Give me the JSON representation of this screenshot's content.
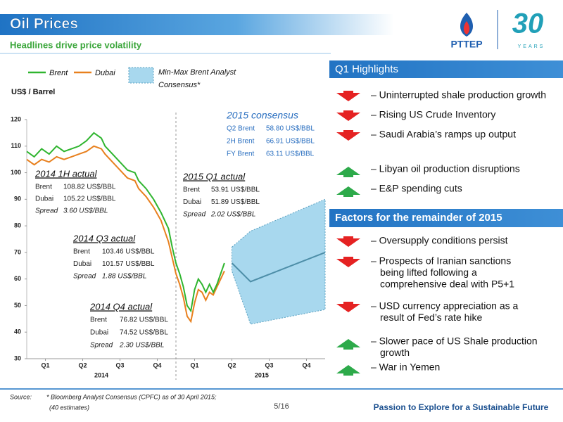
{
  "header": {
    "title": "Oil Prices",
    "subtitle": "Headlines drive price volatility",
    "logo": "PTTEP",
    "anniversary": "30",
    "anniversary_word": "YEARS"
  },
  "chart_data": {
    "type": "line",
    "ylabel": "US$ / Barrel",
    "xlim": [
      0,
      8
    ],
    "ylim": [
      30,
      120
    ],
    "yticks": [
      30,
      40,
      50,
      60,
      70,
      80,
      90,
      100,
      110,
      120
    ],
    "xticks": [
      {
        "value": 0.5,
        "label": "Q1"
      },
      {
        "value": 1.5,
        "label": "Q2"
      },
      {
        "value": 2.5,
        "label": "Q3"
      },
      {
        "value": 3.5,
        "label": "Q4"
      },
      {
        "value": 4.5,
        "label": "Q1"
      },
      {
        "value": 5.5,
        "label": "Q2"
      },
      {
        "value": 6.5,
        "label": "Q3"
      },
      {
        "value": 7.5,
        "label": "Q4"
      }
    ],
    "years": [
      {
        "value": 2,
        "label": "2014"
      },
      {
        "value": 6.3,
        "label": "2015"
      }
    ],
    "x": [
      0,
      0.2,
      0.4,
      0.6,
      0.8,
      1.0,
      1.2,
      1.4,
      1.6,
      1.8,
      2.0,
      2.1,
      2.3,
      2.5,
      2.7,
      2.9,
      3.0,
      3.2,
      3.4,
      3.6,
      3.7,
      3.8,
      3.9,
      4.0,
      4.1,
      4.2,
      4.3,
      4.4,
      4.5,
      4.6,
      4.7,
      4.8,
      4.9,
      5.0,
      5.1,
      5.2,
      5.3
    ],
    "series": [
      {
        "name": "Brent",
        "color": "#2fb52f",
        "values": [
          108,
          106,
          109,
          107,
          110,
          108,
          109,
          110,
          112,
          115,
          113,
          110,
          107,
          104,
          101,
          100,
          97,
          94,
          90,
          85,
          82,
          79,
          72,
          66,
          62,
          57,
          50,
          48,
          56,
          60,
          58,
          55,
          58,
          55,
          58,
          62,
          66
        ]
      },
      {
        "name": "Dubai",
        "color": "#e8801e",
        "values": [
          105,
          103,
          105,
          104,
          106,
          105,
          106,
          107,
          108,
          110,
          109,
          107,
          104,
          101,
          98,
          97,
          94,
          91,
          87,
          82,
          78,
          74,
          68,
          62,
          58,
          53,
          46,
          44,
          51,
          56,
          55,
          52,
          55,
          54,
          57,
          60,
          63
        ]
      }
    ],
    "consensus": {
      "name": "Min-Max Brent Analyst Consensus*",
      "color": "#a8d8ee",
      "line_color": "#4d8ea8",
      "x": [
        5.5,
        6.0,
        8.0
      ],
      "min": [
        63,
        43,
        48.5
      ],
      "max": [
        72,
        78,
        90
      ],
      "median": [
        66,
        59,
        70
      ]
    },
    "annotations": [
      {
        "title": "2014 1H actual",
        "rows": [
          [
            "Brent",
            "108.82 US$/BBL"
          ],
          [
            "Dubai",
            "105.22 US$/BBL"
          ],
          [
            "Spread",
            "3.60 US$/BBL"
          ]
        ]
      },
      {
        "title": "2015 Q1 actual",
        "rows": [
          [
            "Brent",
            "53.91 US$/BBL"
          ],
          [
            "Dubai",
            "51.89 US$/BBL"
          ],
          [
            "Spread",
            "2.02 US$/BBL"
          ]
        ]
      },
      {
        "title": "2014 Q3 actual",
        "rows": [
          [
            "Brent",
            "103.46 US$/BBL"
          ],
          [
            "Dubai",
            "101.57 US$/BBL"
          ],
          [
            "Spread",
            "1.88 US$/BBL"
          ]
        ]
      },
      {
        "title": "2014 Q4 actual",
        "rows": [
          [
            "Brent",
            "76.82 US$/BBL"
          ],
          [
            "Dubai",
            "74.52 US$/BBL"
          ],
          [
            "Spread",
            "2.30 US$/BBL"
          ]
        ]
      },
      {
        "title": "2015 consensus",
        "rows": [
          [
            "Q2 Brent",
            "58.80 US$/BBL"
          ],
          [
            "2H Brent",
            "66.91 US$/BBL"
          ],
          [
            "FY Brent",
            "63.11 US$/BBL"
          ]
        ]
      }
    ]
  },
  "highlights": {
    "title": "Q1 Highlights",
    "items": [
      {
        "direction": "down",
        "lines": [
          "– Uninterrupted shale production growth"
        ]
      },
      {
        "direction": "down",
        "lines": [
          "– Rising US Crude Inventory"
        ]
      },
      {
        "direction": "down",
        "lines": [
          "– Saudi Arabia’s ramps up output"
        ]
      },
      {
        "direction": "up",
        "lines": [
          "– Libyan oil production disruptions"
        ]
      },
      {
        "direction": "up",
        "lines": [
          "– E&P spending cuts"
        ]
      }
    ]
  },
  "factors": {
    "title": "Factors for the remainder of 2015",
    "items": [
      {
        "direction": "down",
        "lines": [
          "– Oversupply conditions persist"
        ]
      },
      {
        "direction": "down",
        "lines": [
          "– Prospects of Iranian sanctions",
          "being lifted following a",
          "comprehensive deal with P5+1"
        ]
      },
      {
        "direction": "down",
        "lines": [
          "– USD currency appreciation as a",
          "result of Fed’s rate hike"
        ]
      },
      {
        "direction": "up",
        "lines": [
          "– Slower pace of US Shale production",
          "growth"
        ]
      },
      {
        "direction": "up",
        "lines": [
          "– War in Yemen"
        ]
      }
    ]
  },
  "footer": {
    "source_label": "Source:",
    "source": "* Bloomberg Analyst Consensus (CPFC) as of 30 April 2015;",
    "source_note": "(40 estimates)",
    "page": "5/16",
    "tagline": "Passion to Explore for a Sustainable Future"
  }
}
